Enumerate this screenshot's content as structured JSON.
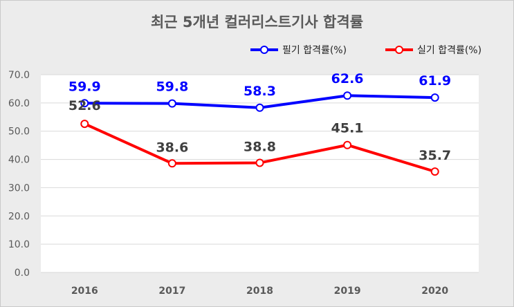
{
  "chart_data": {
    "type": "line",
    "title": "최근 5개년 컬러리스트기사 합격률",
    "categories": [
      "2016",
      "2017",
      "2018",
      "2019",
      "2020"
    ],
    "series": [
      {
        "name": "필기 합격률(%)",
        "color": "#0000ff",
        "values": [
          59.9,
          59.8,
          58.3,
          62.6,
          61.9
        ]
      },
      {
        "name": "실기 합격률(%)",
        "color": "#ff0000",
        "values": [
          52.6,
          38.6,
          38.8,
          45.1,
          35.7
        ]
      }
    ],
    "y_ticks": [
      "0.0",
      "10.0",
      "20.0",
      "30.0",
      "40.0",
      "50.0",
      "60.0",
      "70.0"
    ],
    "ylim": [
      0,
      70
    ],
    "grid": true,
    "legend_position": "top-right",
    "label_colors": [
      "#0000ff",
      "#404040"
    ]
  }
}
